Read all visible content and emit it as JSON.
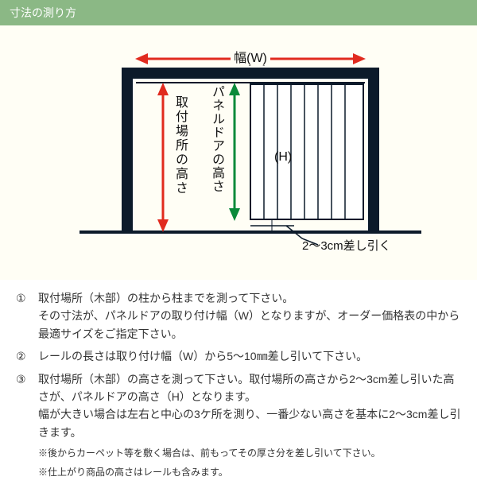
{
  "header": {
    "title": "寸法の測り方"
  },
  "diagram": {
    "width_label": "幅(W)",
    "height_label": "(H)",
    "red_label": "取付場所の高さ",
    "green_label": "パネルドアの高さ",
    "gap_label": "2〜3cm差し引く",
    "colors": {
      "bg": "#fffef5",
      "frame": "#0c1a2a",
      "panel_border": "#0c1a2a",
      "panel_stripe": "#c7cfc9",
      "ground": "#0c1a2a",
      "red": "#e12b1f",
      "green": "#0a8a3a",
      "text": "#111111"
    }
  },
  "instructions": [
    {
      "num": "①",
      "text": "取付場所（木部）の柱から柱までを測って下さい。\nその寸法が、パネルドアの取り付け幅（W）となりますが、オーダー価格表の中から最適サイズをご指定下さい。"
    },
    {
      "num": "②",
      "text": "レールの長さは取り付け幅（W）から5〜10㎜差し引いて下さい。"
    },
    {
      "num": "③",
      "text": "取付場所（木部）の高さを測って下さい。取付場所の高さから2〜3cm差し引いた高さが、パネルドアの高さ（H）となります。\n幅が大きい場合は左右と中心の3ケ所を測り、一番少ない高さを基本に2〜3cm差し引きます。"
    }
  ],
  "notes": [
    "※後からカーペット等を敷く場合は、前もってその厚さ分を差し引いて下さい。",
    "※仕上がり商品の高さはレールも含みます。"
  ]
}
